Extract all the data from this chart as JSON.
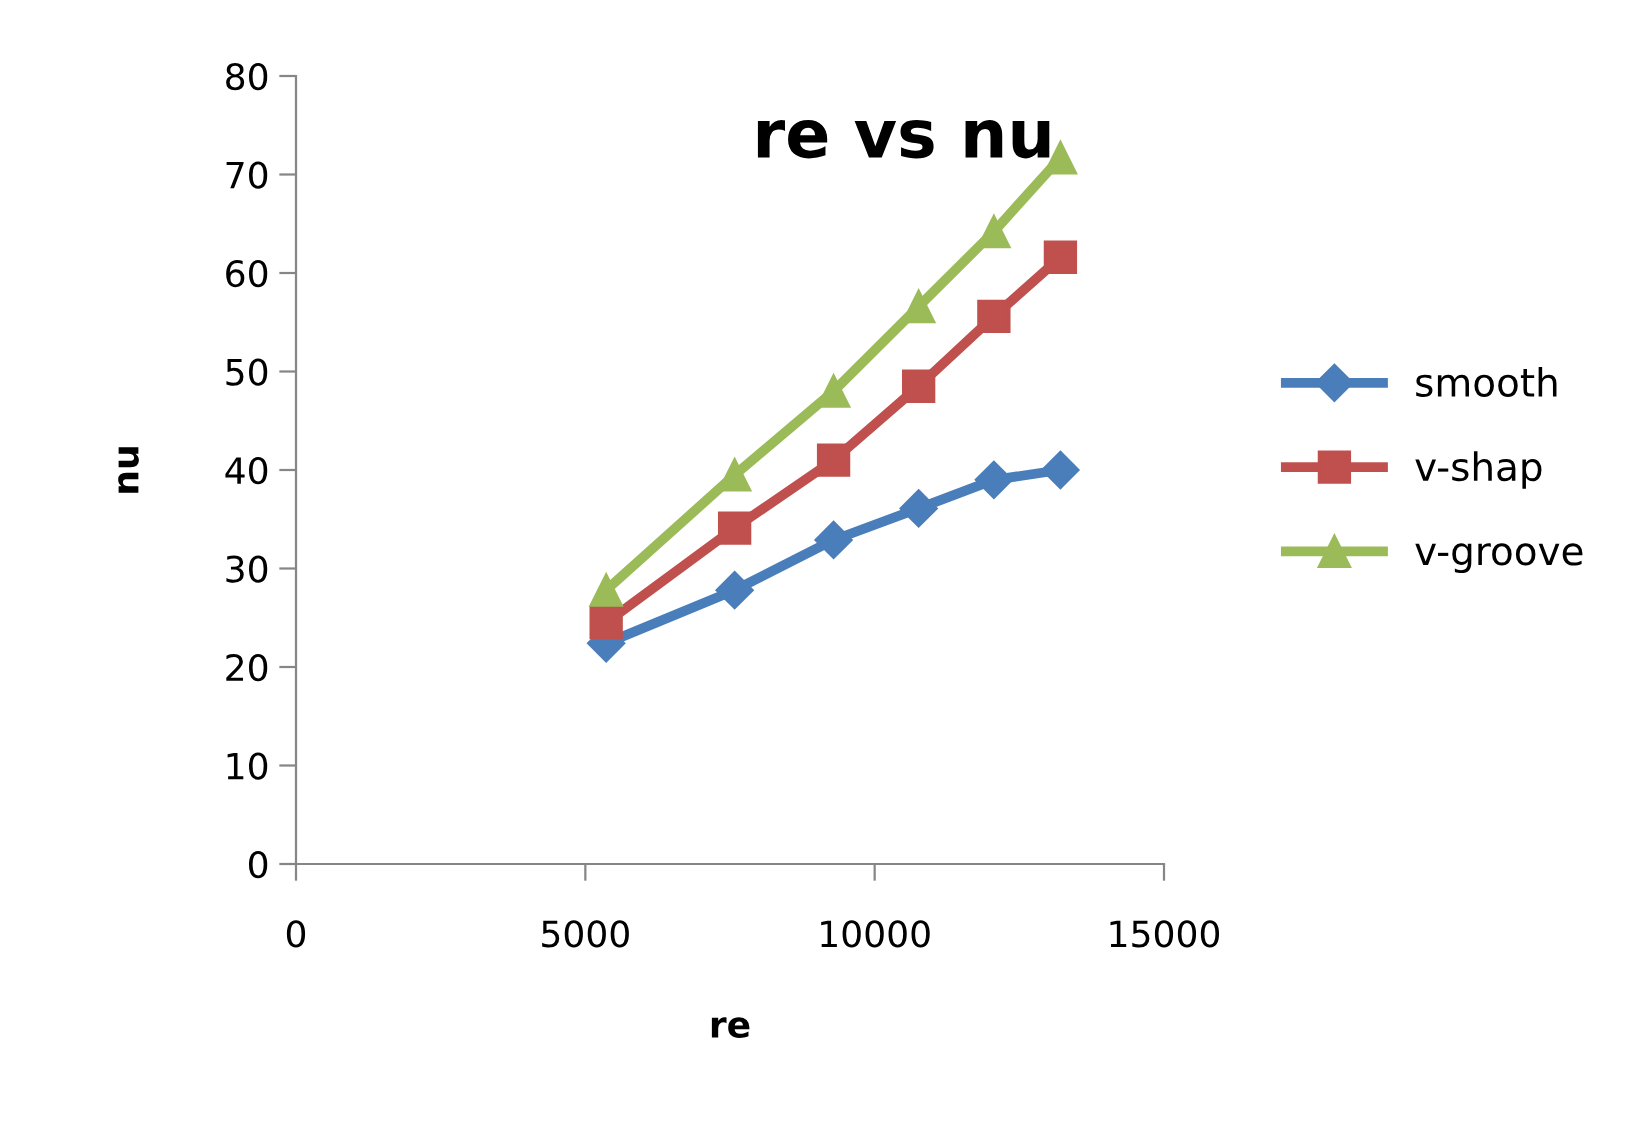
{
  "chart_data": {
    "type": "line",
    "title": "re vs nu",
    "xlabel": "re",
    "ylabel": "nu",
    "x": [
      5360,
      7580,
      9290,
      10760,
      12060,
      13210
    ],
    "series": [
      {
        "name": "smooth",
        "color": "#4a7ebb",
        "marker": "diamond",
        "values": [
          22.4,
          27.8,
          32.9,
          36.1,
          39.0,
          40.0
        ]
      },
      {
        "name": "v-shap",
        "color": "#c0504d",
        "marker": "square",
        "values": [
          24.5,
          34.1,
          41.0,
          48.5,
          55.6,
          61.6
        ]
      },
      {
        "name": "v-groove",
        "color": "#9bbb59",
        "marker": "triangle",
        "values": [
          27.8,
          39.5,
          48.0,
          56.6,
          64.2,
          71.7
        ]
      }
    ],
    "xlim": [
      0,
      15000
    ],
    "xticks": [
      0,
      5000,
      10000,
      15000
    ],
    "ylim": [
      0,
      80
    ],
    "yticks": [
      0,
      10,
      20,
      30,
      40,
      50,
      60,
      70,
      80
    ],
    "grid": false,
    "legend": "right",
    "line_style": "solid"
  }
}
